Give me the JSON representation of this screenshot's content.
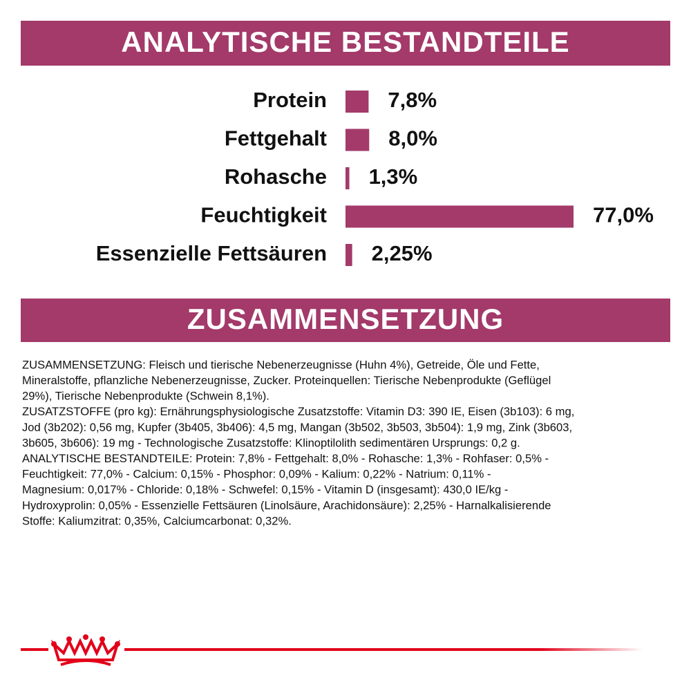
{
  "chart_data": {
    "type": "bar",
    "orientation": "horizontal",
    "title": "ANALYTISCHE BESTANDTEILE",
    "categories": [
      "Protein",
      "Fettgehalt",
      "Rohasche",
      "Feuchtigkeit",
      "Essenzielle Fettsäuren"
    ],
    "values": [
      7.8,
      8.0,
      1.3,
      77.0,
      2.25
    ],
    "value_labels": [
      "7,8%",
      "8,0%",
      "1,3%",
      "77,0%",
      "2,25%"
    ],
    "color": "#a33a6a"
  },
  "composition": {
    "title": "ZUSAMMENSETZUNG",
    "lines": [
      "ZUSAMMENSETZUNG: Fleisch und tierische Nebenerzeugnisse (Huhn 4%), Getreide, Öle und Fette,",
      "Mineralstoffe, pflanzliche Nebenerzeugnisse, Zucker. Proteinquellen: Tierische Nebenprodukte (Geflügel",
      "29%), Tierische Nebenprodukte (Schwein 8,1%).",
      "ZUSATZSTOFFE (pro kg): Ernährungsphysiologische Zusatzstoffe: Vitamin D3: 390 IE, Eisen (3b103): 6 mg,",
      "Jod (3b202): 0,56 mg, Kupfer (3b405, 3b406): 4,5 mg, Mangan (3b502, 3b503, 3b504): 1,9 mg, Zink (3b603,",
      "3b605, 3b606): 19 mg - Technologische Zusatzstoffe: Klinoptilolith sedimentären Ursprungs: 0,2 g.",
      "ANALYTISCHE BESTANDTEILE: Protein: 7,8% - Fettgehalt: 8,0% - Rohasche: 1,3% - Rohfaser: 0,5% -",
      "Feuchtigkeit: 77,0% - Calcium: 0,15% - Phosphor: 0,09% - Kalium: 0,22% - Natrium: 0,11% -",
      "Magnesium: 0,017% - Chloride: 0,18% - Schwefel: 0,15% - Vitamin D (insgesamt): 430,0 IE/kg -",
      "Hydroxyprolin: 0,05% - Essenzielle Fettsäuren (Linolsäure, Arachidonsäure): 2,25% - Harnalkalisierende",
      "Stoffe: Kaliumzitrat: 0,35%, Calciumcarbonat: 0,32%."
    ]
  }
}
